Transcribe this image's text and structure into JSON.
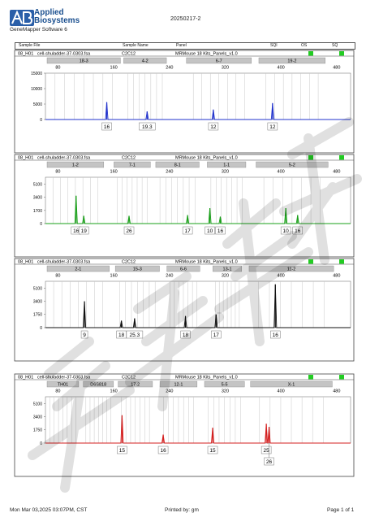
{
  "header": {
    "brand_line1": "Applied",
    "brand_line2": "Biosystems",
    "software": "GeneMapper Software 6",
    "run_title": "20250217-2",
    "columns": [
      "Sample File",
      "Sample Name",
      "Panel",
      "SQI",
      "OS",
      "SQ"
    ]
  },
  "colors": {
    "blue": "#2233cc",
    "green": "#1aa01a",
    "black": "#111111",
    "red": "#d42020",
    "quality_ok": "#22cc22"
  },
  "chart_data": [
    {
      "type": "line",
      "row": {
        "well": "08_H01",
        "sample_file": "cell-shuladder-37-0303.fsa",
        "sample_name": "C2C12",
        "panel": "MRMouse 18 Kits_Panels_v1.0"
      },
      "color": "blue",
      "xlim": [
        62,
        500
      ],
      "x_ticks": [
        80,
        160,
        240,
        320,
        400,
        480
      ],
      "ylim": [
        0,
        15000
      ],
      "y_ticks": [
        0,
        5000,
        10000,
        15000
      ],
      "y_tick_labels": [
        "0",
        "5000",
        "10000",
        "15000"
      ],
      "markers": [
        {
          "name": "18-3",
          "range": [
            62,
            172
          ]
        },
        {
          "name": "4-2",
          "range": [
            172,
            238
          ]
        },
        {
          "name": "6-7",
          "range": [
            262,
            360
          ]
        },
        {
          "name": "19-2",
          "range": [
            366,
            466
          ]
        }
      ],
      "peaks": [
        {
          "x": 150,
          "y": 5600,
          "allele": "16"
        },
        {
          "x": 208,
          "y": 2600,
          "allele": "19.3"
        },
        {
          "x": 303,
          "y": 3200,
          "allele": "12"
        },
        {
          "x": 388,
          "y": 5300,
          "allele": "12"
        }
      ]
    },
    {
      "type": "line",
      "row": {
        "well": "08_H01",
        "sample_file": "cell-shuladder-37-0303.fsa",
        "sample_name": "C2C12",
        "panel": "MRMouse 18 Kits_Panels_v1.0"
      },
      "color": "green",
      "xlim": [
        62,
        500
      ],
      "x_ticks": [
        80,
        160,
        240,
        320,
        400,
        480
      ],
      "ylim": [
        0,
        6000
      ],
      "y_ticks": [
        0,
        1700,
        3400,
        5100
      ],
      "y_tick_labels": [
        "0",
        "1700",
        "3400",
        "5100"
      ],
      "markers": [
        {
          "name": "1-2",
          "range": [
            62,
            148
          ]
        },
        {
          "name": "7-1",
          "range": [
            158,
            215
          ]
        },
        {
          "name": "8-1",
          "range": [
            218,
            285
          ]
        },
        {
          "name": "1-1",
          "range": [
            292,
            352
          ]
        },
        {
          "name": "5-2",
          "range": [
            362,
            470
          ]
        }
      ],
      "peaks": [
        {
          "x": 106,
          "y": 3600,
          "allele": "16"
        },
        {
          "x": 117,
          "y": 1000,
          "allele": "19"
        },
        {
          "x": 182,
          "y": 1000,
          "allele": "26"
        },
        {
          "x": 266,
          "y": 1100,
          "allele": "17"
        },
        {
          "x": 298,
          "y": 2000,
          "allele": "10"
        },
        {
          "x": 313,
          "y": 900,
          "allele": "16"
        },
        {
          "x": 407,
          "y": 2000,
          "allele": "10"
        },
        {
          "x": 424,
          "y": 1100,
          "allele": "16"
        }
      ]
    },
    {
      "type": "line",
      "row": {
        "well": "08_H01",
        "sample_file": "cell-shuladder-37-0303.fsa",
        "sample_name": "C2C12",
        "panel": "MRMouse 18 Kits_Panels_v1.0"
      },
      "color": "black",
      "xlim": [
        62,
        500
      ],
      "x_ticks": [
        80,
        160,
        240,
        320,
        400,
        480
      ],
      "ylim": [
        0,
        6000
      ],
      "y_ticks": [
        0,
        1750,
        3400,
        5100
      ],
      "y_tick_labels": [
        "0",
        "1750",
        "3400",
        "5100"
      ],
      "markers": [
        {
          "name": "2-1",
          "range": [
            62,
            156
          ]
        },
        {
          "name": "15-3",
          "range": [
            160,
            228
          ]
        },
        {
          "name": "6-6",
          "range": [
            234,
            286
          ]
        },
        {
          "name": "13-1",
          "range": [
            300,
            346
          ]
        },
        {
          "name": "11-2",
          "range": [
            352,
            478
          ]
        }
      ],
      "peaks": [
        {
          "x": 118,
          "y": 3400,
          "allele": "9"
        },
        {
          "x": 171,
          "y": 900,
          "allele": "18"
        },
        {
          "x": 190,
          "y": 1200,
          "allele": "25.3"
        },
        {
          "x": 263,
          "y": 1500,
          "allele": "18"
        },
        {
          "x": 307,
          "y": 1700,
          "allele": "17"
        },
        {
          "x": 392,
          "y": 5600,
          "allele": "16"
        }
      ]
    },
    {
      "type": "line",
      "row": {
        "well": "08_H01",
        "sample_file": "cell-shuladder-37-0303.fsa",
        "sample_name": "C2C12",
        "panel": "MRMouse 18 Kits_Panels_v1.0"
      },
      "color": "red",
      "xlim": [
        62,
        500
      ],
      "x_ticks": [
        80,
        160,
        240,
        320,
        400,
        480
      ],
      "ylim": [
        0,
        6000
      ],
      "y_ticks": [
        0,
        1750,
        3400,
        5100
      ],
      "y_tick_labels": [
        "0",
        "1750",
        "3400",
        "5100"
      ],
      "markers": [
        {
          "name": "TH01",
          "range": [
            62,
            112
          ]
        },
        {
          "name": "D6S818",
          "range": [
            114,
            162
          ]
        },
        {
          "name": "17-2",
          "range": [
            164,
            218
          ]
        },
        {
          "name": "12-1",
          "range": [
            224,
            282
          ]
        },
        {
          "name": "5-5",
          "range": [
            288,
            350
          ]
        },
        {
          "name": "X-1",
          "range": [
            354,
            476
          ]
        }
      ],
      "peaks": [
        {
          "x": 172,
          "y": 3600,
          "allele": "15"
        },
        {
          "x": 231,
          "y": 1100,
          "allele": "16"
        },
        {
          "x": 302,
          "y": 2000,
          "allele": "15"
        },
        {
          "x": 379,
          "y": 2500,
          "allele": "25"
        },
        {
          "x": 383,
          "y": 2100,
          "allele": "26"
        }
      ]
    }
  ],
  "footer": {
    "date": "Mon Mar 03,2025 03:07PM, CST",
    "printed_by": "Printed by: gm",
    "page": "Page 1 of 1"
  }
}
